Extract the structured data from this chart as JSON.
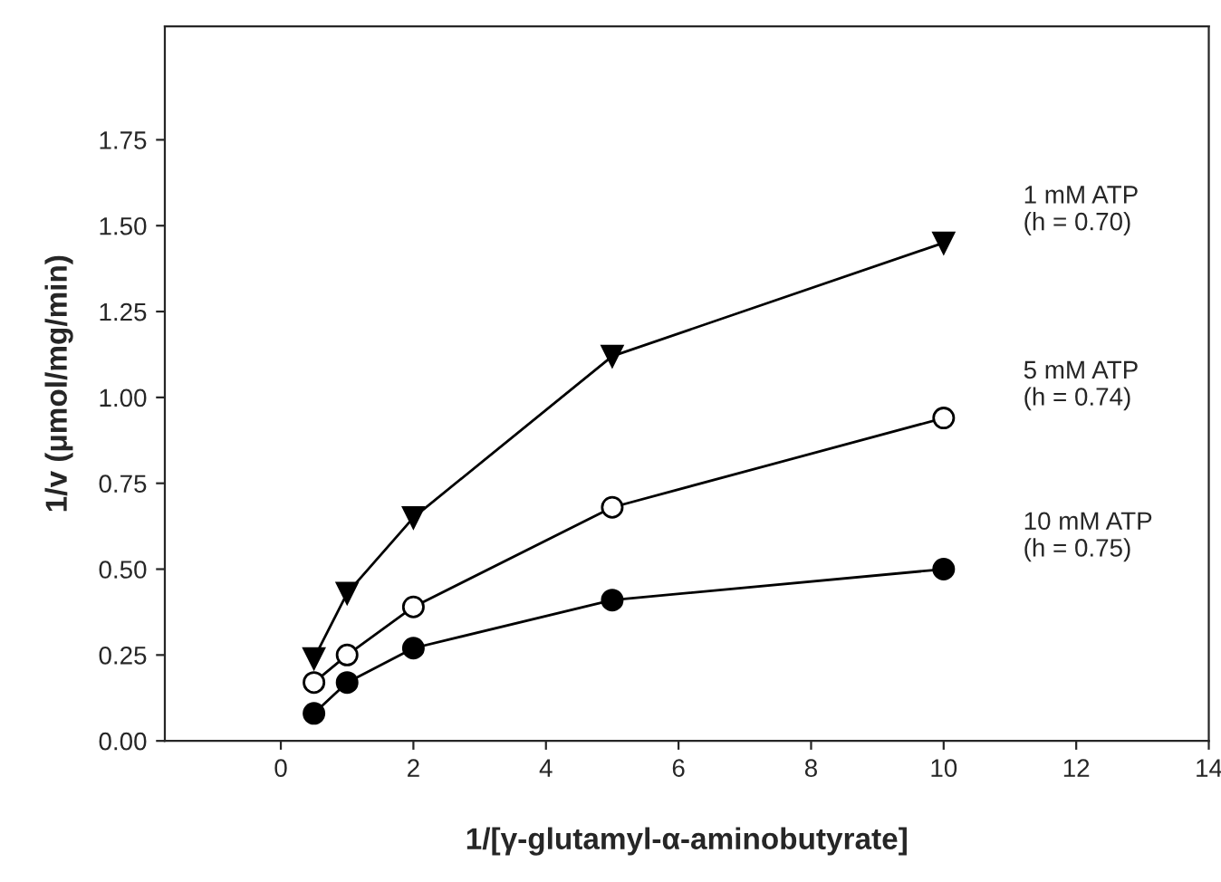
{
  "chart_data": {
    "type": "line",
    "xlabel": "1/[γ-glutamyl-α-aminobutyrate]",
    "ylabel": "1/v (μmol/mg/min)",
    "x": [
      0.5,
      1,
      2,
      5,
      10
    ],
    "series": [
      {
        "name": "1 mM ATP",
        "color": "#000000",
        "marker": "triangle",
        "values": [
          0.24,
          0.43,
          0.65,
          1.12,
          1.45
        ]
      },
      {
        "name": "5 mM ATP",
        "color": "#ffffff",
        "marker": "circle",
        "values": [
          0.17,
          0.25,
          0.39,
          0.68,
          0.94
        ]
      },
      {
        "name": "10 mM ATP",
        "color": "#000000",
        "marker": "circle",
        "values": [
          0.08,
          0.17,
          0.27,
          0.41,
          0.5
        ]
      }
    ],
    "annotations": [
      "(h = 0.70)",
      "(h = 0.74)",
      "(h = 0.75)"
    ],
    "xlim": [
      -1.75,
      14
    ],
    "xticks": [
      0,
      2,
      4,
      6,
      8,
      10,
      12,
      14
    ],
    "ylim": [
      0,
      2.08
    ],
    "yticks": [
      {
        "value": 0,
        "label": "0.00"
      },
      {
        "value": 0.25,
        "label": "0.25"
      },
      {
        "value": 0.5,
        "label": "0.50"
      },
      {
        "value": 0.75,
        "label": "0.75"
      },
      {
        "value": 1.0,
        "label": "1.00"
      },
      {
        "value": 1.25,
        "label": "1.25"
      },
      {
        "value": 1.5,
        "label": "1.50"
      },
      {
        "value": 1.75,
        "label": "1.75"
      }
    ],
    "grid": false,
    "legend": false,
    "line_style": "solid"
  }
}
